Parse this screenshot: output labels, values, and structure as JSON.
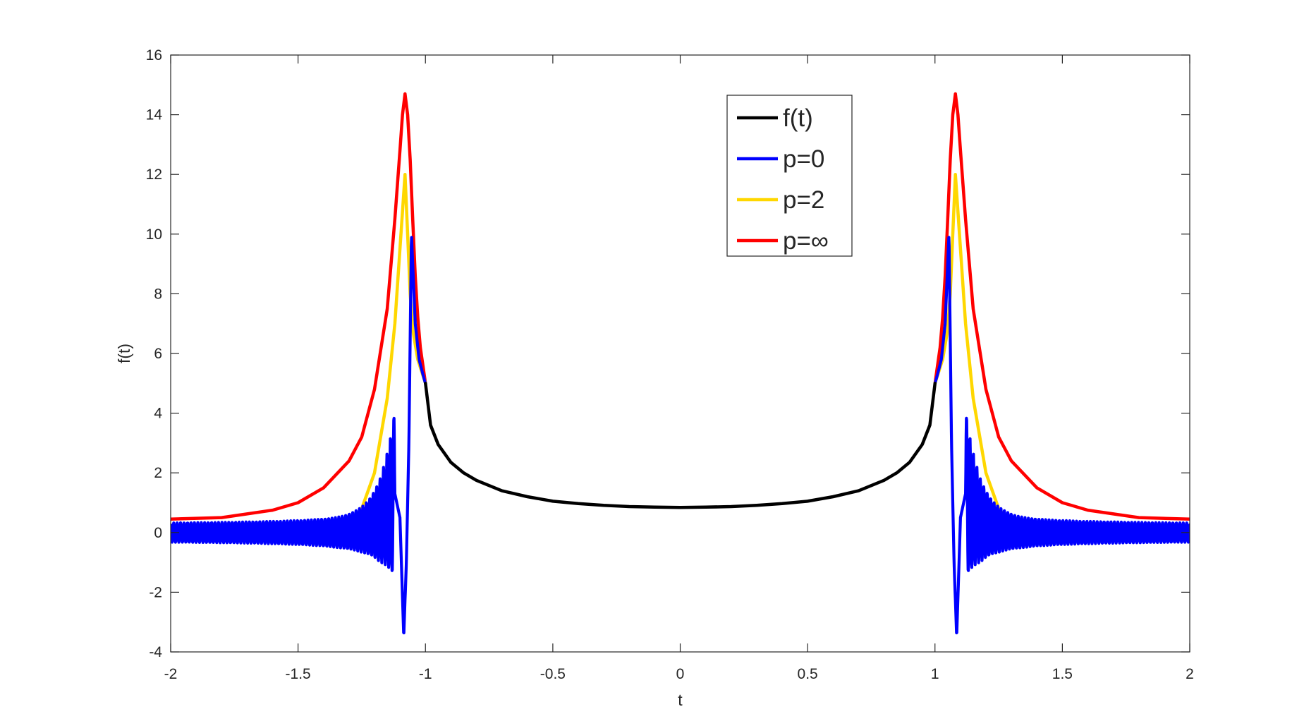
{
  "chart_data": {
    "type": "line",
    "title": "",
    "xlabel": "t",
    "ylabel": "f(t)",
    "xlim": [
      -2,
      2
    ],
    "ylim": [
      -4,
      16
    ],
    "xticks": [
      -2,
      -1.5,
      -1,
      -0.5,
      0,
      0.5,
      1,
      1.5,
      2
    ],
    "xtick_labels": [
      "-2",
      "-1.5",
      "-1",
      "-0.5",
      "0",
      "0.5",
      "1",
      "1.5",
      "2"
    ],
    "yticks": [
      -4,
      -2,
      0,
      2,
      4,
      6,
      8,
      10,
      12,
      14,
      16
    ],
    "ytick_labels": [
      "-4",
      "-2",
      "0",
      "2",
      "4",
      "6",
      "8",
      "10",
      "12",
      "14",
      "16"
    ],
    "grid": false,
    "legend_position": "top-center",
    "series": [
      {
        "name": "f(t)",
        "color": "#000000",
        "x": [
          -1.0,
          -0.98,
          -0.95,
          -0.9,
          -0.85,
          -0.8,
          -0.7,
          -0.6,
          -0.5,
          -0.4,
          -0.3,
          -0.2,
          -0.1,
          0.0,
          0.1,
          0.2,
          0.3,
          0.4,
          0.5,
          0.6,
          0.7,
          0.8,
          0.85,
          0.9,
          0.95,
          0.98,
          1.0
        ],
        "y": [
          5.0,
          3.6,
          2.95,
          2.35,
          2.0,
          1.75,
          1.4,
          1.2,
          1.05,
          0.97,
          0.91,
          0.87,
          0.85,
          0.84,
          0.85,
          0.87,
          0.91,
          0.97,
          1.05,
          1.2,
          1.4,
          1.75,
          2.0,
          2.35,
          2.95,
          3.6,
          5.0
        ]
      },
      {
        "name": "p=0",
        "color": "#0000ff",
        "x": [
          -2.0,
          -1.5,
          -1.35,
          -1.25,
          -1.18,
          -1.14,
          -1.12,
          -1.1,
          -1.085,
          -1.075,
          -1.065,
          -1.055,
          -1.04,
          -1.025,
          -1.01,
          -1.0,
          1.0,
          1.01,
          1.025,
          1.04,
          1.055,
          1.065,
          1.075,
          1.085,
          1.1,
          1.12,
          1.14,
          1.18,
          1.25,
          1.35,
          1.5,
          2.0
        ],
        "y": [
          0.0,
          0.0,
          0.05,
          0.2,
          0.5,
          1.0,
          1.3,
          0.5,
          -3.5,
          -1.0,
          3.0,
          10.0,
          7.0,
          5.8,
          5.3,
          5.0,
          5.0,
          5.3,
          5.8,
          7.0,
          10.0,
          3.0,
          -1.0,
          -3.5,
          0.5,
          1.3,
          1.0,
          0.5,
          0.2,
          0.05,
          0.0,
          0.0
        ],
        "oscillation_amplitude_far": [
          0.3,
          0.6
        ]
      },
      {
        "name": "p=2",
        "color": "#ffd700",
        "x": [
          -2.0,
          -1.5,
          -1.4,
          -1.3,
          -1.25,
          -1.2,
          -1.15,
          -1.12,
          -1.1,
          -1.08,
          -1.07,
          -1.06,
          -1.05,
          -1.03,
          -1.0,
          1.0,
          1.03,
          1.05,
          1.06,
          1.07,
          1.08,
          1.1,
          1.12,
          1.15,
          1.2,
          1.25,
          1.3,
          1.4,
          1.5,
          2.0
        ],
        "y": [
          0.0,
          0.0,
          0.05,
          0.3,
          0.8,
          2.0,
          4.5,
          7.0,
          9.5,
          12.0,
          10.0,
          8.0,
          6.8,
          5.8,
          5.0,
          5.0,
          5.8,
          6.8,
          8.0,
          10.0,
          12.0,
          9.5,
          7.0,
          4.5,
          2.0,
          0.8,
          0.3,
          0.05,
          0.0,
          0.0
        ]
      },
      {
        "name": "p=∞",
        "color": "#ff0000",
        "x": [
          -2.0,
          -1.8,
          -1.6,
          -1.5,
          -1.4,
          -1.3,
          -1.25,
          -1.2,
          -1.15,
          -1.12,
          -1.1,
          -1.09,
          -1.08,
          -1.07,
          -1.06,
          -1.05,
          -1.04,
          -1.03,
          -1.02,
          -1.0,
          1.0,
          1.02,
          1.03,
          1.04,
          1.05,
          1.06,
          1.07,
          1.08,
          1.09,
          1.1,
          1.12,
          1.15,
          1.2,
          1.25,
          1.3,
          1.4,
          1.5,
          1.6,
          1.8,
          2.0
        ],
        "y": [
          0.45,
          0.5,
          0.75,
          1.0,
          1.5,
          2.4,
          3.2,
          4.8,
          7.5,
          10.5,
          12.8,
          14.0,
          14.7,
          14.0,
          12.5,
          10.5,
          8.6,
          7.2,
          6.2,
          5.0,
          5.0,
          6.2,
          7.2,
          8.6,
          10.5,
          12.5,
          14.0,
          14.7,
          14.0,
          12.8,
          10.5,
          7.5,
          4.8,
          3.2,
          2.4,
          1.5,
          1.0,
          0.75,
          0.5,
          0.45
        ]
      }
    ]
  }
}
